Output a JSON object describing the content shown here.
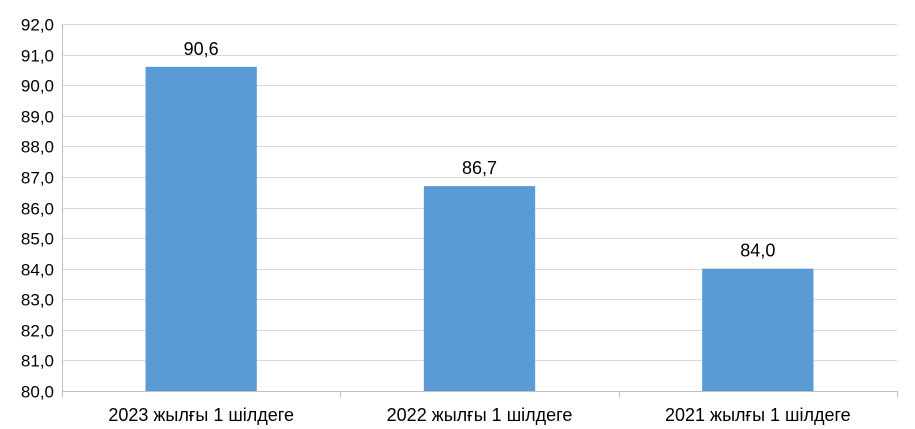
{
  "chart_data": {
    "type": "bar",
    "categories": [
      "2023 жылғы 1 шілдеге",
      "2022 жылғы 1 шілдеге",
      "2021 жылғы 1 шілдеге"
    ],
    "values": [
      90.6,
      86.7,
      84.0
    ],
    "value_labels": [
      "90,6",
      "86,7",
      "84,0"
    ],
    "ylim": [
      80.0,
      92.0
    ],
    "y_ticks": [
      80.0,
      81.0,
      82.0,
      83.0,
      84.0,
      85.0,
      86.0,
      87.0,
      88.0,
      89.0,
      90.0,
      91.0,
      92.0
    ],
    "y_tick_labels": [
      "80,0",
      "81,0",
      "82,0",
      "83,0",
      "84,0",
      "85,0",
      "86,0",
      "87,0",
      "88,0",
      "89,0",
      "90,0",
      "91,0",
      "92,0"
    ],
    "grid": true,
    "legend": "none",
    "bar_color": "#5b9bd5"
  }
}
